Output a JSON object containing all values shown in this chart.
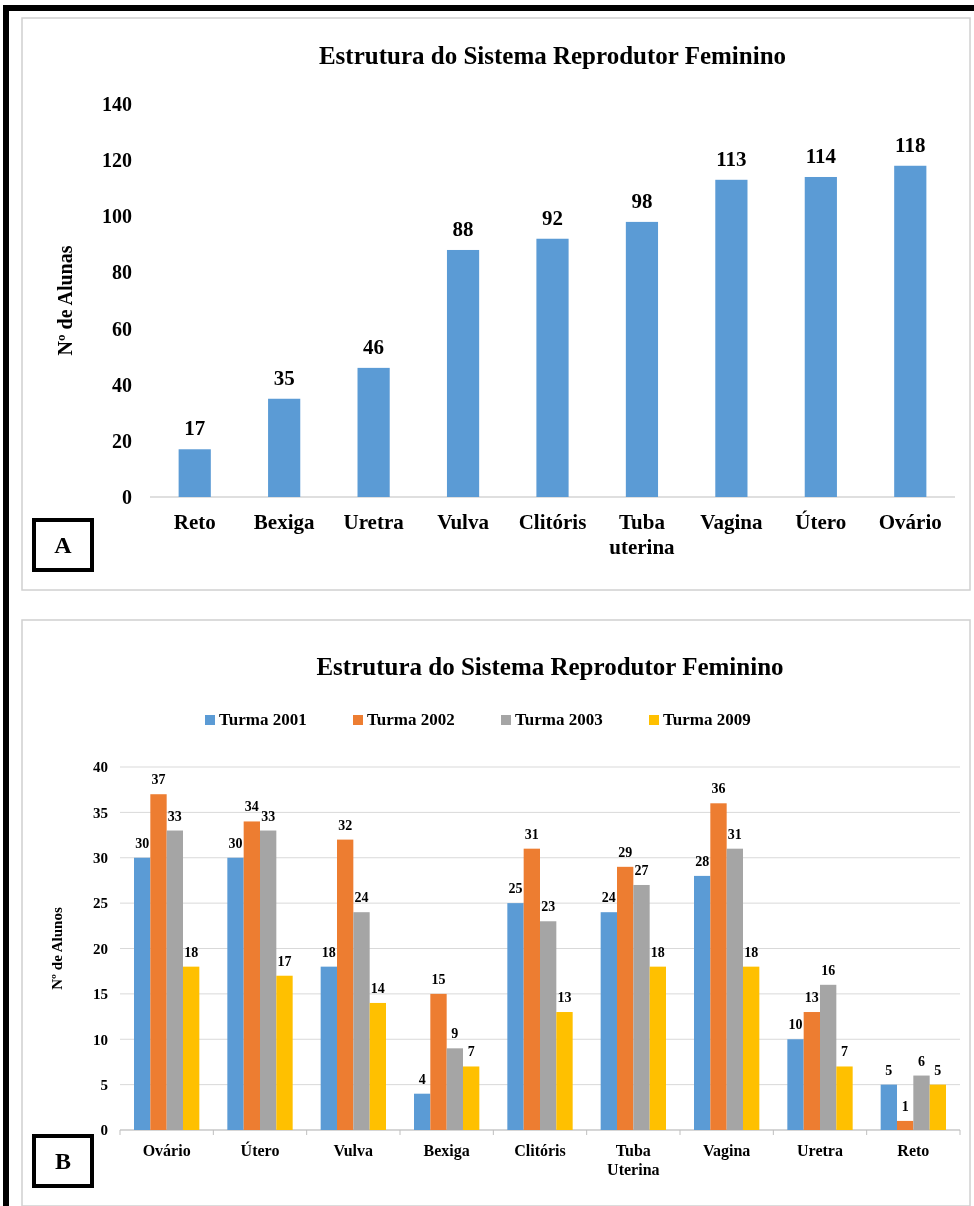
{
  "chart_data": [
    {
      "type": "bar",
      "title": "Estrutura  do Sistema Reprodutor Feminino",
      "ylabel": "Nº de Alunas",
      "categories": [
        "Reto",
        "Bexiga",
        "Uretra",
        "Vulva",
        "Clitóris",
        "Tuba uterina",
        "Vagina",
        "Útero",
        "Ovário"
      ],
      "values": [
        17,
        35,
        46,
        88,
        92,
        98,
        113,
        114,
        118
      ],
      "color": "#5b9bd5",
      "ylim": [
        0,
        140
      ],
      "yticks": [
        0,
        20,
        40,
        60,
        80,
        100,
        120,
        140
      ],
      "grid": false,
      "data_labels": true,
      "annotations": [
        "A"
      ]
    },
    {
      "type": "bar",
      "title": "Estrutura  do Sistema Reprodutor Feminino",
      "ylabel": "Nº de Alunos",
      "categories": [
        "Ovário",
        "Útero",
        "Vulva",
        "Bexiga",
        "Clitóris",
        "Tuba Uterina",
        "Vagina",
        "Uretra",
        "Reto"
      ],
      "series": [
        {
          "name": "Turma 2001",
          "color": "#5b9bd5",
          "values": [
            30,
            30,
            18,
            4,
            25,
            24,
            28,
            10,
            5
          ]
        },
        {
          "name": "Turma 2002",
          "color": "#ed7d31",
          "values": [
            37,
            34,
            32,
            15,
            31,
            29,
            36,
            13,
            1
          ]
        },
        {
          "name": "Turma 2003",
          "color": "#a5a5a5",
          "values": [
            33,
            33,
            24,
            9,
            23,
            27,
            31,
            16,
            6
          ]
        },
        {
          "name": "Turma 2009",
          "color": "#ffc000",
          "values": [
            18,
            17,
            14,
            7,
            13,
            18,
            18,
            7,
            5
          ]
        }
      ],
      "ylim": [
        0,
        40
      ],
      "yticks": [
        0,
        5,
        10,
        15,
        20,
        25,
        30,
        35,
        40
      ],
      "grid": "y",
      "legend": "top",
      "data_labels": true,
      "annotations": [
        "B"
      ]
    }
  ]
}
